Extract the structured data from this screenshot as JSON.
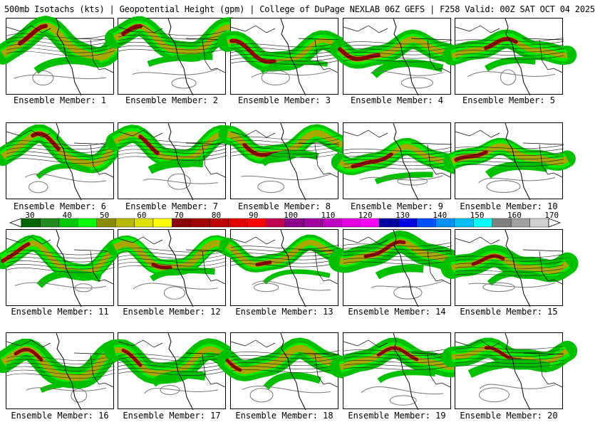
{
  "header": {
    "title": "500mb Isotachs (kts) | Geopotential Height (gpm) | College of DuPage NEXLAB   06Z GEFS | F258 Valid: 00Z SAT OCT 04 2025"
  },
  "members": [
    "Ensemble Member: 1",
    "Ensemble Member: 2",
    "Ensemble Member: 3",
    "Ensemble Member: 4",
    "Ensemble Member: 5",
    "Ensemble Member: 6",
    "Ensemble Member: 7",
    "Ensemble Member: 8",
    "Ensemble Member: 9",
    "Ensemble Member: 10",
    "Ensemble Member: 11",
    "Ensemble Member: 12",
    "Ensemble Member: 13",
    "Ensemble Member: 14",
    "Ensemble Member: 15",
    "Ensemble Member: 16",
    "Ensemble Member: 17",
    "Ensemble Member: 18",
    "Ensemble Member: 19",
    "Ensemble Member: 20"
  ],
  "colorbar": {
    "labels": [
      "30",
      "40",
      "50",
      "60",
      "70",
      "80",
      "90",
      "100",
      "110",
      "120",
      "130",
      "140",
      "150",
      "160",
      "170"
    ],
    "colors": [
      "#006400",
      "#228b22",
      "#00c800",
      "#00ff00",
      "#8b8b00",
      "#b8b800",
      "#e0e000",
      "#ffff00",
      "#8b0000",
      "#a00000",
      "#c00000",
      "#e00000",
      "#ff0000",
      "#c00050",
      "#8b008b",
      "#a000a0",
      "#c000c0",
      "#e000e0",
      "#ff00ff",
      "#0000a0",
      "#0000e0",
      "#0050ff",
      "#0090ff",
      "#00c0ff",
      "#00ffff",
      "#808080",
      "#a0a0a0",
      "#d0d0d0"
    ]
  }
}
